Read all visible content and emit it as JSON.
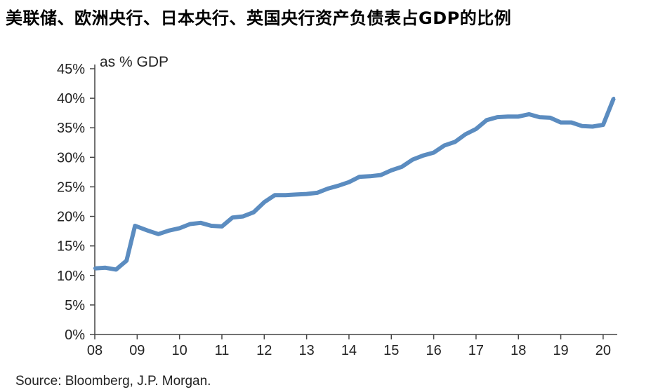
{
  "title": "美联储、欧洲央行、日本央行、英国央行资产负债表占GDP的比例",
  "source": "Source: Bloomberg, J.P. Morgan.",
  "chart_data": {
    "type": "line",
    "title": "美联储、欧洲央行、日本央行、英国央行资产负债表占GDP的比例",
    "unit_label": "as % GDP",
    "xlabel": "",
    "ylabel": "",
    "x_tick_labels": [
      "08",
      "09",
      "10",
      "11",
      "12",
      "13",
      "14",
      "15",
      "16",
      "17",
      "18",
      "19",
      "20"
    ],
    "y_tick_labels": [
      "0%",
      "5%",
      "10%",
      "15%",
      "20%",
      "25%",
      "30%",
      "35%",
      "40%",
      "45%"
    ],
    "y_ticks": [
      0,
      5,
      10,
      15,
      20,
      25,
      30,
      35,
      40,
      45
    ],
    "xlim": [
      2008.0,
      2020.3
    ],
    "ylim": [
      0,
      45
    ],
    "grid": false,
    "legend": "none",
    "line_color": "#5b8cc0",
    "series": [
      {
        "x": [
          2008.0,
          2008.25,
          2008.5,
          2008.75,
          2008.95,
          2009.25,
          2009.5,
          2009.75,
          2010.0,
          2010.25,
          2010.5,
          2010.75,
          2011.0,
          2011.25,
          2011.5,
          2011.75,
          2012.0,
          2012.25,
          2012.5,
          2012.75,
          2013.0,
          2013.25,
          2013.5,
          2013.75,
          2014.0,
          2014.25,
          2014.5,
          2014.75,
          2015.0,
          2015.25,
          2015.5,
          2015.75,
          2016.0,
          2016.25,
          2016.5,
          2016.75,
          2017.0,
          2017.25,
          2017.5,
          2017.75,
          2018.0,
          2018.25,
          2018.5,
          2018.75,
          2019.0,
          2019.25,
          2019.5,
          2019.75,
          2020.0,
          2020.25
        ],
        "values": [
          11.2,
          11.3,
          11.0,
          12.5,
          18.4,
          17.6,
          17.0,
          17.6,
          18.0,
          18.7,
          18.9,
          18.4,
          18.3,
          19.8,
          20.0,
          20.7,
          22.4,
          23.6,
          23.6,
          23.7,
          23.8,
          24.0,
          24.7,
          25.2,
          25.8,
          26.7,
          26.8,
          27.0,
          27.8,
          28.4,
          29.6,
          30.3,
          30.8,
          32.0,
          32.6,
          33.9,
          34.8,
          36.3,
          36.8,
          36.9,
          36.9,
          37.3,
          36.8,
          36.7,
          35.9,
          35.9,
          35.3,
          35.2,
          35.5,
          40.0
        ]
      }
    ]
  }
}
